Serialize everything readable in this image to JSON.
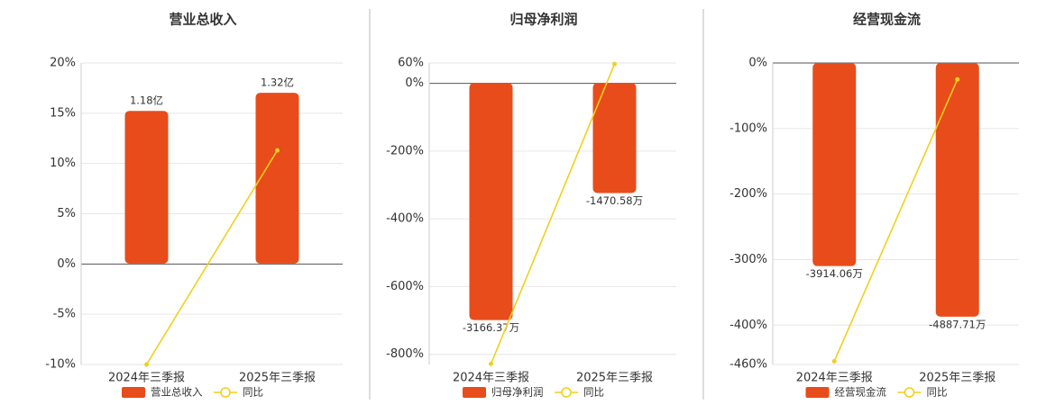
{
  "chart_data": [
    {
      "type": "bar-line",
      "title": "营业总收入",
      "categories": [
        "2024年三季报",
        "2025年三季报"
      ],
      "series": [
        {
          "name": "营业总收入",
          "type": "bar",
          "color": "#e84c1b",
          "axis": "y2",
          "values": [
            1.18,
            1.32
          ],
          "value_labels": [
            "1.18亿",
            "1.32亿"
          ]
        },
        {
          "name": "同比",
          "type": "line",
          "color": "#f2cf1d",
          "values": [
            -10,
            11.3
          ]
        }
      ],
      "ylim": [
        -10,
        20
      ],
      "yticks": [
        {
          "value": -10,
          "label": "-10%"
        },
        {
          "value": -5,
          "label": "-5%"
        },
        {
          "value": 0,
          "label": "0%"
        },
        {
          "value": 5,
          "label": "5%"
        },
        {
          "value": 10,
          "label": "10%"
        },
        {
          "value": 15,
          "label": "15%"
        },
        {
          "value": 20,
          "label": "20%"
        }
      ],
      "y2lim": [
        -0.78,
        1.55
      ],
      "grid": true
    },
    {
      "type": "bar-line",
      "title": "归母净利润",
      "categories": [
        "2024年三季报",
        "2025年三季报"
      ],
      "series": [
        {
          "name": "归母净利润",
          "type": "bar",
          "color": "#e84c1b",
          "axis": "y2",
          "values": [
            -3166.37,
            -1470.58
          ],
          "value_labels": [
            "-3166.37万",
            "-1470.58万"
          ]
        },
        {
          "name": "同比",
          "type": "line",
          "color": "#f2cf1d",
          "values": [
            -828,
            57
          ]
        }
      ],
      "ylim": [
        -830,
        60
      ],
      "yticks": [
        {
          "value": -800,
          "label": "-800%"
        },
        {
          "value": -600,
          "label": "-600%"
        },
        {
          "value": -400,
          "label": "-400%"
        },
        {
          "value": -200,
          "label": "-200%"
        },
        {
          "value": 0,
          "label": "0%"
        },
        {
          "value": 60,
          "label": "60%"
        }
      ],
      "y2lim": [
        -3760,
        266
      ],
      "grid": true
    },
    {
      "type": "bar-line",
      "title": "经营现金流",
      "categories": [
        "2024年三季报",
        "2025年三季报"
      ],
      "series": [
        {
          "name": "经营现金流",
          "type": "bar",
          "color": "#e84c1b",
          "axis": "y2",
          "values": [
            -3914.06,
            -4887.71
          ],
          "value_labels": [
            "-3914.06万",
            "-4887.71万"
          ]
        },
        {
          "name": "同比",
          "type": "line",
          "color": "#f2cf1d",
          "values": [
            -455,
            -25
          ]
        }
      ],
      "ylim": [
        -460,
        0
      ],
      "yticks": [
        {
          "value": -460,
          "label": "-460%"
        },
        {
          "value": -400,
          "label": "-400%"
        },
        {
          "value": -300,
          "label": "-300%"
        },
        {
          "value": -200,
          "label": "-200%"
        },
        {
          "value": -100,
          "label": "-100%"
        },
        {
          "value": 0,
          "label": "0%"
        }
      ],
      "y2lim": [
        -5810,
        0
      ],
      "grid": true
    }
  ]
}
